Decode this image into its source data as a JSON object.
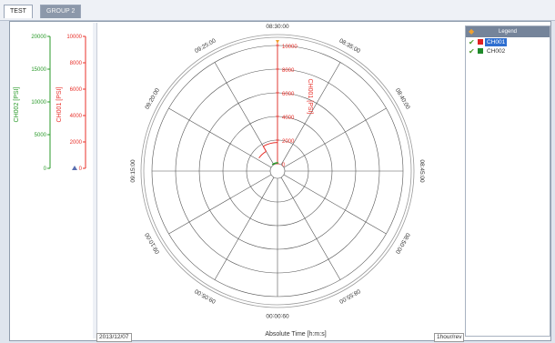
{
  "tabs": [
    {
      "label": "TEST",
      "active": true
    },
    {
      "label": "GROUP 2",
      "active": false
    }
  ],
  "axes": {
    "ch002": {
      "label": "CH002 [PSI]",
      "ticks": [
        "20000",
        "15000",
        "10000",
        "5000",
        "0"
      ],
      "color": "#2a9a2a"
    },
    "ch001": {
      "label": "CH001 [PSI]",
      "ticks": [
        "10000",
        "8000",
        "6000",
        "4000",
        "2000",
        "0"
      ],
      "color": "#e8302a"
    }
  },
  "polar": {
    "radial_label": "CH001 [PSI]",
    "radial_ticks": [
      "10000",
      "8000",
      "6000",
      "4000",
      "2000",
      "0"
    ],
    "time_labels": [
      "08:30:00",
      "08:35:00",
      "08:40:00",
      "08:45:00",
      "08:50:00",
      "08:55:00",
      "09:00:00",
      "09:05:00",
      "09:10:00",
      "09:15:00",
      "09:20:00",
      "09:25:00"
    ]
  },
  "footer": {
    "date": "2013/12/07",
    "x_title": "Absolute Time [h:m:s]",
    "rev": "1hour/rev"
  },
  "legend": {
    "title": "Legend",
    "items": [
      {
        "name": "CH001",
        "color": "#e02020",
        "selected": true
      },
      {
        "name": "CH002",
        "color": "#1f8a2a",
        "selected": false
      }
    ]
  },
  "colors": {
    "accent": "#2f6fd0",
    "ch001": "#e8302a",
    "ch002": "#2a9a2a"
  }
}
